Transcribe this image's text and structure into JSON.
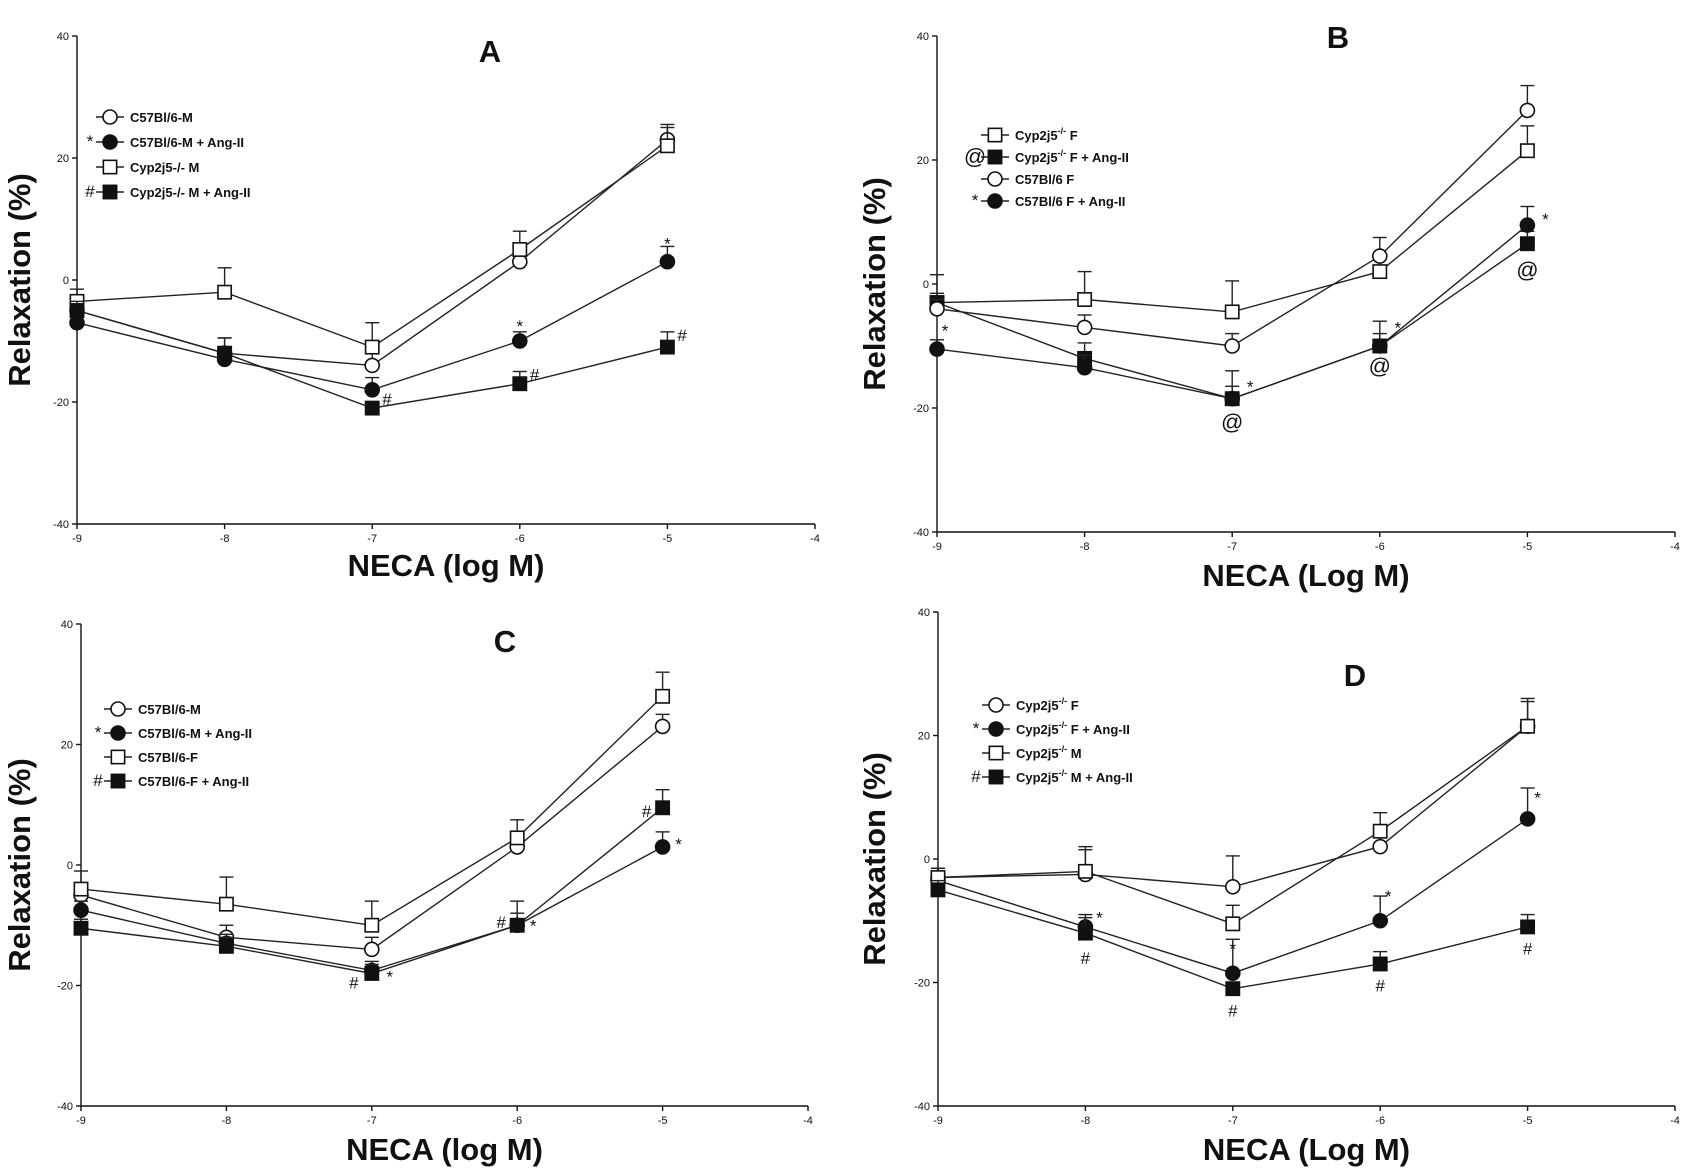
{
  "figure_title": "",
  "chart_data": [
    {
      "type": "line",
      "title": "A",
      "xlabel": "NECA (log M)",
      "ylabel": "Relaxation (%)",
      "xlim": [
        -9,
        -4
      ],
      "ylim": [
        -40,
        40
      ],
      "xticks": [
        "-9",
        "-8",
        "-7",
        "-6",
        "-5",
        "-4"
      ],
      "yticks": [
        "-40",
        "-20",
        "0",
        "20",
        "40"
      ],
      "grid": false,
      "legend_position": "top-left",
      "x": [
        -9,
        -8,
        -7,
        -6,
        -5
      ],
      "series": [
        {
          "name": "C57Bl/6-M",
          "marker": "open-circle",
          "legend_sym": "",
          "values": [
            -5,
            -12,
            -14,
            3,
            23
          ],
          "err": [
            1.5,
            2.5,
            2,
            2,
            2
          ]
        },
        {
          "name": "C57Bl/6-M + Ang-II",
          "marker": "filled-circle",
          "legend_sym": "*",
          "values": [
            -7,
            -13,
            -18,
            -10,
            3
          ],
          "err": [
            1.5,
            2,
            2,
            1.5,
            2.5
          ]
        },
        {
          "name": "Cyp2j5-/- M",
          "marker": "open-square",
          "legend_sym": "",
          "values": [
            -3.5,
            -2,
            -11,
            5,
            22
          ],
          "err": [
            2,
            4,
            4,
            3,
            3.5
          ]
        },
        {
          "name": "Cyp2j5-/- M + Ang-II",
          "marker": "filled-square",
          "legend_sym": "#",
          "values": [
            -5,
            -12,
            -21,
            -17,
            -11
          ],
          "err": [
            1.5,
            2.5,
            1,
            2,
            2.5
          ]
        }
      ],
      "annotations": [
        {
          "text": "*",
          "x": -6,
          "y": -7.5,
          "dx": 0
        },
        {
          "text": "*",
          "x": -5,
          "y": 6,
          "dx": 0
        },
        {
          "text": "#",
          "x": -6.9,
          "y": -19.5,
          "dx": 0
        },
        {
          "text": "#",
          "x": -5.9,
          "y": -15.5,
          "dx": 0
        },
        {
          "text": "#",
          "x": -4.9,
          "y": -9,
          "dx": 0
        }
      ]
    },
    {
      "type": "line",
      "title": "B",
      "xlabel": "NECA (Log M)",
      "ylabel": "Relaxation (%)",
      "xlim": [
        -9,
        -4
      ],
      "ylim": [
        -40,
        40
      ],
      "xticks": [
        "-9",
        "-8",
        "-7",
        "-6",
        "-5",
        "-4"
      ],
      "yticks": [
        "-40",
        "-20",
        "0",
        "20",
        "40"
      ],
      "grid": false,
      "legend_position": "top-left",
      "x": [
        -9,
        -8,
        -7,
        -6,
        -5
      ],
      "series": [
        {
          "name": "Cyp2j5",
          "suffix": " F",
          "sup": "-/-",
          "marker": "open-square",
          "legend_sym": "",
          "values": [
            -3,
            -2.5,
            -4.5,
            2,
            21.5
          ],
          "err": [
            4.5,
            4.5,
            5,
            2.5,
            4
          ]
        },
        {
          "name": "Cyp2j5",
          "suffix": " F + Ang-II",
          "sup": "-/-",
          "marker": "filled-square",
          "legend_sym": "@",
          "values": [
            -3,
            -12,
            -18.5,
            -10,
            6.5
          ],
          "err": [
            1.5,
            2.5,
            2,
            2,
            2
          ]
        },
        {
          "name": "C57Bl/6 F",
          "marker": "open-circle",
          "legend_sym": "",
          "values": [
            -4,
            -7,
            -10,
            4.5,
            28
          ],
          "err": [
            1.5,
            2,
            2,
            3,
            4
          ]
        },
        {
          "name": "C57Bl/6 F + Ang-II",
          "marker": "filled-circle",
          "legend_sym": "*",
          "values": [
            -10.5,
            -13.5,
            -18.5,
            -10,
            9.5
          ],
          "err": [
            1.5,
            2,
            4.5,
            4,
            3
          ]
        }
      ],
      "annotations": [
        {
          "text": "*",
          "x": -9,
          "y": -7.5,
          "dx": 8
        },
        {
          "text": "*",
          "x": -7,
          "y": -16.5,
          "dx": 18
        },
        {
          "text": "*",
          "x": -6,
          "y": -7,
          "dx": 18
        },
        {
          "text": "*",
          "x": -5,
          "y": 10.5,
          "dx": 18
        },
        {
          "text": "@",
          "x": -7,
          "y": -22.5,
          "dx": 0
        },
        {
          "text": "@",
          "x": -6,
          "y": -13.5,
          "dx": 0
        },
        {
          "text": "@",
          "x": -5,
          "y": 2,
          "dx": 0
        }
      ]
    },
    {
      "type": "line",
      "title": "C",
      "xlabel": "NECA (log M)",
      "ylabel": "Relaxation (%)",
      "xlim": [
        -9,
        -4
      ],
      "ylim": [
        -40,
        40
      ],
      "xticks": [
        "-9",
        "-8",
        "-7",
        "-6",
        "-5",
        "-4"
      ],
      "yticks": [
        "-40",
        "-20",
        "0",
        "20",
        "40"
      ],
      "grid": false,
      "legend_position": "center-left",
      "x": [
        -9,
        -8,
        -7,
        -6,
        -5
      ],
      "series": [
        {
          "name": "C57Bl/6-M",
          "marker": "open-circle",
          "legend_sym": "",
          "values": [
            -5,
            -12,
            -14,
            3,
            23
          ],
          "err": [
            1.5,
            2,
            2,
            2,
            2
          ]
        },
        {
          "name": "C57Bl/6-M + Ang-II",
          "marker": "filled-circle",
          "legend_sym": "*",
          "values": [
            -7.5,
            -13,
            -17.5,
            -10,
            3
          ],
          "err": [
            1.5,
            1.5,
            1.5,
            4,
            2.5
          ]
        },
        {
          "name": "C57Bl/6-F",
          "marker": "open-square",
          "legend_sym": "",
          "values": [
            -4,
            -6.5,
            -10,
            4.5,
            28
          ],
          "err": [
            3,
            4.5,
            4,
            3,
            4
          ]
        },
        {
          "name": "C57Bl/6-F  + Ang-II",
          "marker": "filled-square",
          "legend_sym": "#",
          "values": [
            -10.5,
            -13.5,
            -18,
            -10,
            9.5
          ],
          "err": [
            1.5,
            1.5,
            1.5,
            2,
            3
          ]
        }
      ],
      "annotations": [
        {
          "text": "#",
          "x": -7,
          "y": -19.5,
          "dx": -18
        },
        {
          "text": "*",
          "x": -7,
          "y": -18.5,
          "dx": 18
        },
        {
          "text": "#",
          "x": -6,
          "y": -9.5,
          "dx": -16
        },
        {
          "text": "*",
          "x": -6,
          "y": -10,
          "dx": 16
        },
        {
          "text": "#",
          "x": -5,
          "y": 9,
          "dx": -16
        },
        {
          "text": "*",
          "x": -5,
          "y": 3.5,
          "dx": 16
        }
      ]
    },
    {
      "type": "line",
      "title": "D",
      "xlabel": "NECA (Log M)",
      "ylabel": "Relaxation (%)",
      "xlim": [
        -9,
        -4
      ],
      "ylim": [
        -40,
        40
      ],
      "xticks": [
        "-9",
        "-8",
        "-7",
        "-6",
        "-5",
        "-4"
      ],
      "yticks": [
        "-40",
        "-20",
        "0",
        "20",
        "40"
      ],
      "grid": false,
      "legend_position": "top-left",
      "x": [
        -9,
        -8,
        -7,
        -6,
        -5
      ],
      "series": [
        {
          "name": "Cyp2j5",
          "suffix": " F",
          "sup": "-/-",
          "marker": "open-circle",
          "legend_sym": "",
          "values": [
            -3,
            -2.5,
            -4.5,
            2,
            21.5
          ],
          "err": [
            1.5,
            4,
            5,
            2.5,
            4
          ]
        },
        {
          "name": "Cyp2j5",
          "suffix": " F + Ang-II",
          "sup": "-/-",
          "marker": "filled-circle",
          "legend_sym": "*",
          "values": [
            -3.5,
            -11,
            -18.5,
            -10,
            6.5
          ],
          "err": [
            1.5,
            2,
            5.5,
            4,
            5
          ]
        },
        {
          "name": "Cyp2j5",
          "suffix": " M",
          "sup": "-/-",
          "marker": "open-square",
          "legend_sym": "",
          "values": [
            -3,
            -2,
            -10.5,
            4.5,
            21.5
          ],
          "err": [
            1.5,
            4,
            3,
            3,
            4.5
          ]
        },
        {
          "name": "Cyp2j5",
          "suffix": " M + Ang-II",
          "sup": "-/-",
          "marker": "filled-square",
          "legend_sym": "#",
          "values": [
            -5,
            -12,
            -21,
            -17,
            -11
          ],
          "err": [
            1.5,
            2.5,
            1,
            2,
            2
          ]
        }
      ],
      "annotations": [
        {
          "text": "*",
          "x": -8,
          "y": -9.5,
          "dx": 14
        },
        {
          "text": "*",
          "x": -7,
          "y": -14.5,
          "dx": 0
        },
        {
          "text": "*",
          "x": -6,
          "y": -6,
          "dx": 8
        },
        {
          "text": "*",
          "x": -5,
          "y": 10,
          "dx": 10
        },
        {
          "text": "#",
          "x": -8,
          "y": -16,
          "dx": 0
        },
        {
          "text": "#",
          "x": -7,
          "y": -24.5,
          "dx": 0
        },
        {
          "text": "#",
          "x": -6,
          "y": -20.5,
          "dx": 0
        },
        {
          "text": "#",
          "x": -5,
          "y": -14.5,
          "dx": 0
        }
      ]
    }
  ]
}
